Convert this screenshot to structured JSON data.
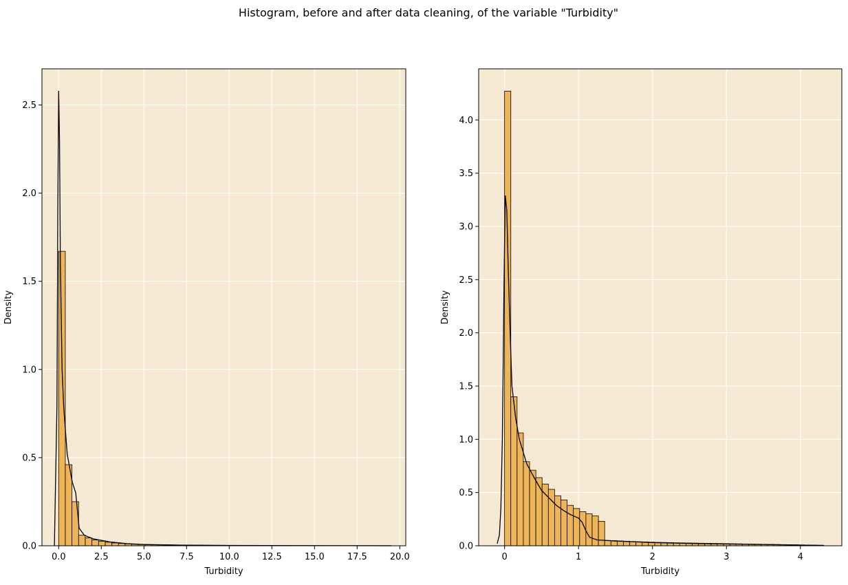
{
  "chart_data": {
    "suptitle": "Histogram, before and after data cleaning, of the variable \"Turbidity\"",
    "colors": {
      "plot_background": "#F5E9D4",
      "bar_fill": "#EDB458",
      "bar_edge": "#000000",
      "kde_line": "#000000",
      "grid": "#FFFFFF"
    },
    "panels": [
      {
        "type": "bar",
        "title": "",
        "xlabel": "Turbidity",
        "ylabel": "Density",
        "xlim": [
          -0.98,
          20.35
        ],
        "ylim": [
          0,
          2.705
        ],
        "xticks": [
          0.0,
          2.5,
          5.0,
          7.5,
          10.0,
          12.5,
          15.0,
          17.5,
          20.0
        ],
        "xtick_labels": [
          "0.0",
          "2.5",
          "5.0",
          "7.5",
          "10.0",
          "12.5",
          "15.0",
          "17.5",
          "20.0"
        ],
        "yticks": [
          0.0,
          0.5,
          1.0,
          1.5,
          2.0,
          2.5
        ],
        "ytick_labels": [
          "0.0",
          "0.5",
          "1.0",
          "1.5",
          "2.0",
          "2.5"
        ],
        "grid": true,
        "bin_start": 0.0,
        "bin_width": 0.39,
        "values": [
          1.67,
          0.46,
          0.25,
          0.06,
          0.045,
          0.033,
          0.026,
          0.02,
          0.016,
          0.013,
          0.011,
          0.009,
          0.008,
          0.007,
          0.006,
          0.005,
          0.005,
          0.004,
          0.004,
          0.0035,
          0.003,
          0.003,
          0.0028,
          0.0026,
          0.0024,
          0.0022,
          0.002,
          0.0019,
          0.0018,
          0.0017,
          0.0016,
          0.0015,
          0.0014,
          0.0013,
          0.0012,
          0.0011,
          0.0011,
          0.001,
          0.001,
          0.001,
          0.0009,
          0.0009,
          0.0008,
          0.0008,
          0.0007,
          0.0007,
          0.0006,
          0.0006,
          0.0005,
          0.0005
        ],
        "kde": {
          "x": [
            -0.25,
            -0.1,
            -0.05,
            0.0,
            0.05,
            0.1,
            0.2,
            0.3,
            0.5,
            0.8,
            1.0,
            1.2,
            1.5,
            2.0,
            3.0,
            4.0,
            5.0,
            7.0,
            10.0,
            13.0,
            16.0,
            19.5
          ],
          "y": [
            0.0,
            0.8,
            1.9,
            2.58,
            2.3,
            1.6,
            1.0,
            0.78,
            0.52,
            0.36,
            0.3,
            0.1,
            0.06,
            0.04,
            0.022,
            0.012,
            0.007,
            0.004,
            0.002,
            0.001,
            0.0005,
            0.0002
          ]
        }
      },
      {
        "type": "bar",
        "title": "",
        "xlabel": "Turbidity",
        "ylabel": "Density",
        "xlim": [
          -0.35,
          4.56
        ],
        "ylim": [
          0,
          4.48
        ],
        "xticks": [
          0,
          1,
          2,
          3,
          4
        ],
        "xtick_labels": [
          "0",
          "1",
          "2",
          "3",
          "4"
        ],
        "yticks": [
          0.0,
          0.5,
          1.0,
          1.5,
          2.0,
          2.5,
          3.0,
          3.5,
          4.0
        ],
        "ytick_labels": [
          "0.0",
          "0.5",
          "1.0",
          "1.5",
          "2.0",
          "2.5",
          "3.0",
          "3.5",
          "4.0"
        ],
        "grid": true,
        "bin_start": 0.0,
        "bin_width": 0.0846,
        "values": [
          4.27,
          1.4,
          1.06,
          0.79,
          0.71,
          0.64,
          0.58,
          0.53,
          0.47,
          0.43,
          0.38,
          0.35,
          0.32,
          0.3,
          0.28,
          0.23,
          0.05,
          0.048,
          0.045,
          0.043,
          0.04,
          0.038,
          0.036,
          0.034,
          0.032,
          0.031,
          0.03,
          0.028,
          0.027,
          0.026,
          0.025,
          0.024,
          0.023,
          0.022,
          0.021,
          0.02,
          0.019,
          0.018,
          0.017,
          0.016,
          0.015,
          0.014,
          0.013,
          0.012,
          0.011,
          0.01,
          0.009,
          0.008,
          0.007,
          0.006,
          0.005
        ],
        "kde": {
          "x": [
            -0.1,
            -0.07,
            -0.05,
            -0.03,
            -0.02,
            -0.01,
            0.0,
            0.01,
            0.03,
            0.05,
            0.08,
            0.1,
            0.15,
            0.2,
            0.3,
            0.4,
            0.5,
            0.6,
            0.7,
            0.8,
            0.9,
            1.0,
            1.05,
            1.1,
            1.15,
            1.25,
            1.5,
            2.0,
            2.5,
            3.0,
            3.5,
            4.0,
            4.3
          ],
          "y": [
            0.02,
            0.1,
            0.35,
            1.0,
            1.6,
            2.3,
            2.85,
            3.29,
            3.15,
            2.6,
            1.9,
            1.5,
            1.2,
            1.0,
            0.77,
            0.64,
            0.52,
            0.45,
            0.38,
            0.33,
            0.29,
            0.26,
            0.22,
            0.14,
            0.08,
            0.055,
            0.045,
            0.03,
            0.022,
            0.017,
            0.012,
            0.006,
            0.003
          ]
        }
      }
    ]
  }
}
